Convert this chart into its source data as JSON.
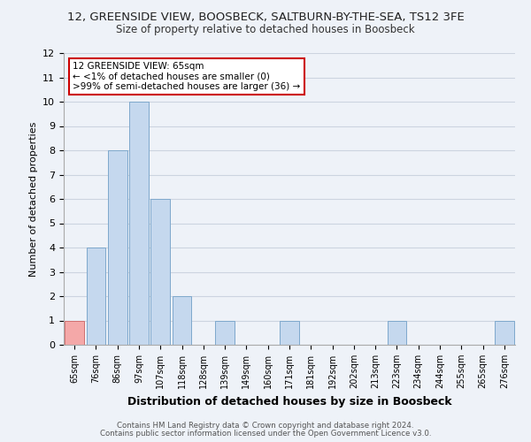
{
  "title_line1": "12, GREENSIDE VIEW, BOOSBECK, SALTBURN-BY-THE-SEA, TS12 3FE",
  "title_line2": "Size of property relative to detached houses in Boosbeck",
  "xlabel": "Distribution of detached houses by size in Boosbeck",
  "ylabel": "Number of detached properties",
  "bin_labels": [
    "65sqm",
    "76sqm",
    "86sqm",
    "97sqm",
    "107sqm",
    "118sqm",
    "128sqm",
    "139sqm",
    "149sqm",
    "160sqm",
    "171sqm",
    "181sqm",
    "192sqm",
    "202sqm",
    "213sqm",
    "223sqm",
    "234sqm",
    "244sqm",
    "255sqm",
    "265sqm",
    "276sqm"
  ],
  "bar_heights": [
    1,
    4,
    8,
    10,
    6,
    2,
    0,
    1,
    0,
    0,
    1,
    0,
    0,
    0,
    0,
    1,
    0,
    0,
    0,
    0,
    1
  ],
  "bar_colors": [
    "#f4a8a8",
    "#c5d8ee",
    "#c5d8ee",
    "#c5d8ee",
    "#c5d8ee",
    "#c5d8ee",
    "#c5d8ee",
    "#c5d8ee",
    "#c5d8ee",
    "#c5d8ee",
    "#c5d8ee",
    "#c5d8ee",
    "#c5d8ee",
    "#c5d8ee",
    "#c5d8ee",
    "#c5d8ee",
    "#c5d8ee",
    "#c5d8ee",
    "#c5d8ee",
    "#c5d8ee",
    "#c5d8ee"
  ],
  "bar_edge_colors": [
    "#d07070",
    "#7ea8cc",
    "#7ea8cc",
    "#7ea8cc",
    "#7ea8cc",
    "#7ea8cc",
    "#7ea8cc",
    "#7ea8cc",
    "#7ea8cc",
    "#7ea8cc",
    "#7ea8cc",
    "#7ea8cc",
    "#7ea8cc",
    "#7ea8cc",
    "#7ea8cc",
    "#7ea8cc",
    "#7ea8cc",
    "#7ea8cc",
    "#7ea8cc",
    "#7ea8cc",
    "#7ea8cc"
  ],
  "ylim": [
    0,
    12
  ],
  "yticks": [
    0,
    1,
    2,
    3,
    4,
    5,
    6,
    7,
    8,
    9,
    10,
    11,
    12
  ],
  "annotation_title": "12 GREENSIDE VIEW: 65sqm",
  "annotation_line1": "← <1% of detached houses are smaller (0)",
  "annotation_line2": ">99% of semi-detached houses are larger (36) →",
  "annotation_box_color": "#ffffff",
  "annotation_box_edge": "#cc0000",
  "footer1": "Contains HM Land Registry data © Crown copyright and database right 2024.",
  "footer2": "Contains public sector information licensed under the Open Government Licence v3.0.",
  "grid_color": "#ccd4e0",
  "background_color": "#eef2f8"
}
